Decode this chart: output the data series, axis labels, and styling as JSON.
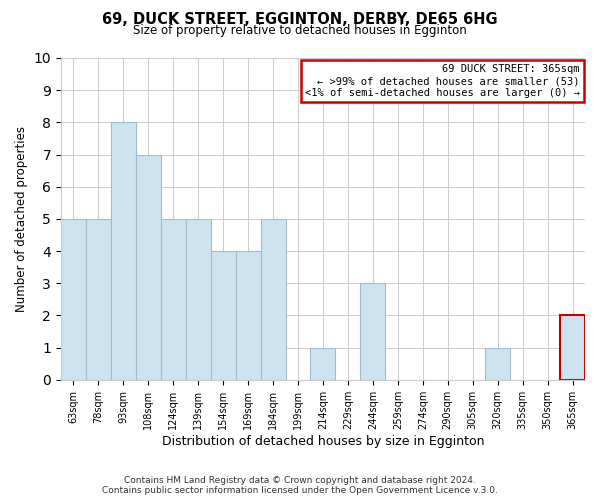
{
  "title": "69, DUCK STREET, EGGINTON, DERBY, DE65 6HG",
  "subtitle": "Size of property relative to detached houses in Egginton",
  "xlabel": "Distribution of detached houses by size in Egginton",
  "ylabel": "Number of detached properties",
  "footer_line1": "Contains HM Land Registry data © Crown copyright and database right 2024.",
  "footer_line2": "Contains public sector information licensed under the Open Government Licence v.3.0.",
  "bins": [
    "63sqm",
    "78sqm",
    "93sqm",
    "108sqm",
    "124sqm",
    "139sqm",
    "154sqm",
    "169sqm",
    "184sqm",
    "199sqm",
    "214sqm",
    "229sqm",
    "244sqm",
    "259sqm",
    "274sqm",
    "290sqm",
    "305sqm",
    "320sqm",
    "335sqm",
    "350sqm",
    "365sqm"
  ],
  "counts": [
    5,
    5,
    8,
    7,
    5,
    5,
    4,
    4,
    5,
    0,
    1,
    0,
    3,
    0,
    0,
    0,
    0,
    1,
    0,
    0,
    2
  ],
  "bar_color": "#cde4f0",
  "bar_edge_color": "#a0bcd0",
  "highlight_index": 20,
  "highlight_box_color": "#cc0000",
  "annotation_title": "69 DUCK STREET: 365sqm",
  "annotation_line1": "← >99% of detached houses are smaller (53)",
  "annotation_line2": "<1% of semi-detached houses are larger (0) →",
  "ylim": [
    0,
    10
  ],
  "yticks": [
    0,
    1,
    2,
    3,
    4,
    5,
    6,
    7,
    8,
    9,
    10
  ],
  "background_color": "#ffffff",
  "grid_color": "#cccccc"
}
